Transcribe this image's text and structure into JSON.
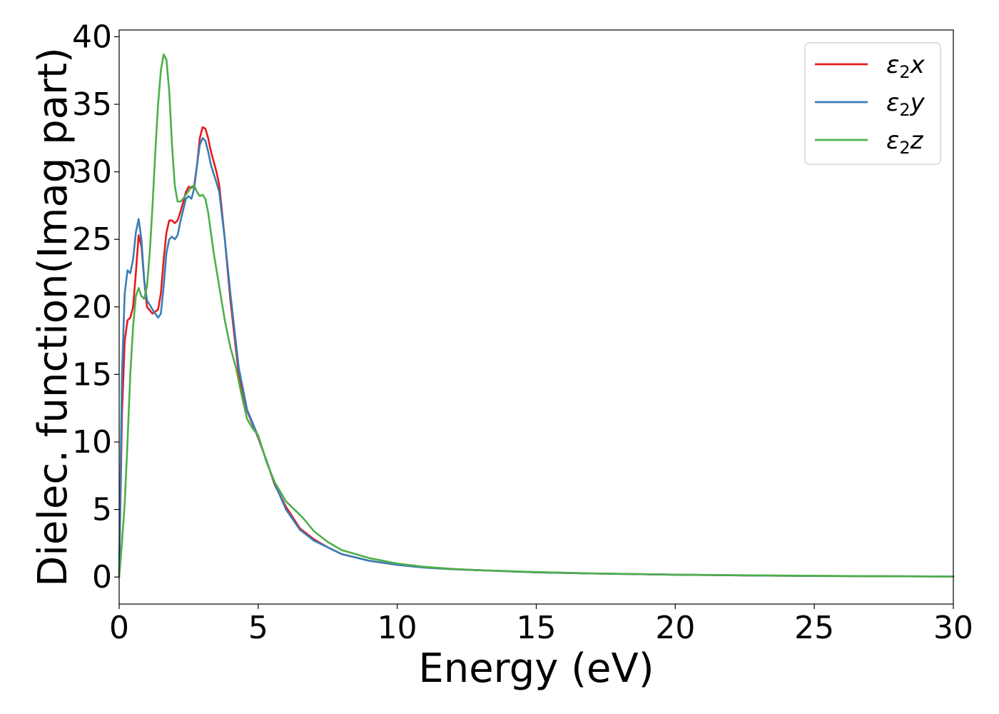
{
  "chart_data": {
    "type": "line",
    "title": "",
    "xlabel": "Energy (eV)",
    "ylabel": "Dielec. function(Imag part)",
    "xlim": [
      0,
      30
    ],
    "ylim": [
      -2,
      40.5
    ],
    "xticks": [
      0,
      5,
      10,
      15,
      20,
      25,
      30
    ],
    "yticks": [
      0,
      5,
      10,
      15,
      20,
      25,
      30,
      35,
      40
    ],
    "grid": false,
    "legend_position": "top-right",
    "series": [
      {
        "name": "ε2x",
        "legend": {
          "base": "ε",
          "sub": "2",
          "var": "x"
        },
        "color": "#e41a1c",
        "x": [
          0,
          0.1,
          0.2,
          0.3,
          0.4,
          0.5,
          0.6,
          0.7,
          0.8,
          0.9,
          1.0,
          1.2,
          1.4,
          1.5,
          1.6,
          1.7,
          1.8,
          1.9,
          2.0,
          2.1,
          2.2,
          2.4,
          2.5,
          2.6,
          2.7,
          2.8,
          2.9,
          3.0,
          3.1,
          3.2,
          3.3,
          3.5,
          3.6,
          3.8,
          4.0,
          4.3,
          4.6,
          5.0,
          5.3,
          5.6,
          6.0,
          6.5,
          7.0,
          7.5,
          8.0,
          9.0,
          10.0,
          11.0,
          12.0,
          13.0,
          15.0,
          17.0,
          20.0,
          22.5,
          25.0,
          27.5,
          30.0
        ],
        "y": [
          0,
          12,
          17.5,
          19,
          19.2,
          20,
          22.5,
          25.3,
          24.5,
          22,
          20,
          19.5,
          19.8,
          21,
          23.5,
          25.5,
          26.4,
          26.4,
          26.2,
          26.4,
          27,
          28.5,
          28.9,
          28.8,
          29,
          30.5,
          32.5,
          33.3,
          33.2,
          32.5,
          31.5,
          30,
          29,
          25,
          20.5,
          15,
          12.3,
          10.3,
          8.6,
          6.8,
          5.2,
          3.6,
          2.8,
          2.2,
          1.7,
          1.2,
          0.9,
          0.7,
          0.58,
          0.5,
          0.35,
          0.26,
          0.17,
          0.12,
          0.08,
          0.06,
          0.04
        ]
      },
      {
        "name": "ε2y",
        "legend": {
          "base": "ε",
          "sub": "2",
          "var": "y"
        },
        "color": "#377eb8",
        "x": [
          0,
          0.1,
          0.2,
          0.3,
          0.4,
          0.5,
          0.6,
          0.7,
          0.8,
          0.9,
          1.0,
          1.2,
          1.4,
          1.5,
          1.6,
          1.7,
          1.8,
          1.9,
          2.0,
          2.1,
          2.2,
          2.4,
          2.5,
          2.6,
          2.7,
          2.8,
          2.9,
          3.0,
          3.1,
          3.2,
          3.3,
          3.5,
          3.6,
          3.8,
          4.0,
          4.3,
          4.6,
          5.0,
          5.3,
          5.6,
          6.0,
          6.5,
          7.0,
          7.5,
          8.0,
          9.0,
          10.0,
          11.0,
          12.0,
          13.0,
          15.0,
          17.0,
          20.0,
          22.5,
          25.0,
          27.5,
          30.0
        ],
        "y": [
          0,
          15,
          21,
          22.7,
          22.5,
          23.5,
          25.5,
          26.5,
          25,
          22,
          20.5,
          19.8,
          19.2,
          19.5,
          21.5,
          24,
          25,
          25.2,
          25,
          25.3,
          26.3,
          28,
          28.2,
          28,
          28.8,
          30.5,
          32,
          32.5,
          32.3,
          31.5,
          30.5,
          29.2,
          28.5,
          25,
          21,
          15.5,
          12.4,
          10.4,
          8.6,
          6.9,
          5.0,
          3.5,
          2.7,
          2.2,
          1.7,
          1.2,
          0.9,
          0.7,
          0.58,
          0.5,
          0.35,
          0.26,
          0.17,
          0.12,
          0.08,
          0.06,
          0.04
        ]
      },
      {
        "name": "ε2z",
        "legend": {
          "base": "ε",
          "sub": "2",
          "var": "z"
        },
        "color": "#4daf4a",
        "x": [
          0,
          0.1,
          0.2,
          0.3,
          0.4,
          0.5,
          0.6,
          0.7,
          0.8,
          0.9,
          1.0,
          1.1,
          1.2,
          1.3,
          1.4,
          1.5,
          1.6,
          1.7,
          1.8,
          1.9,
          2.0,
          2.1,
          2.2,
          2.3,
          2.4,
          2.5,
          2.6,
          2.7,
          2.8,
          2.9,
          3.0,
          3.1,
          3.2,
          3.4,
          3.6,
          3.8,
          4.0,
          4.2,
          4.4,
          4.6,
          4.8,
          5.0,
          5.3,
          5.6,
          6.0,
          6.3,
          6.6,
          7.0,
          7.5,
          8.0,
          9.0,
          10.0,
          11.0,
          12.0,
          13.0,
          15.0,
          17.0,
          20.0,
          22.5,
          25.0,
          27.5,
          30.0
        ],
        "y": [
          0,
          2.5,
          5.5,
          10,
          15,
          18.5,
          20.8,
          21.4,
          20.8,
          20.6,
          21.5,
          24,
          27.5,
          31.5,
          35,
          37.5,
          38.7,
          38.3,
          36,
          32,
          29,
          27.8,
          27.8,
          28,
          28.3,
          28.6,
          28.9,
          29,
          28.5,
          28.2,
          28.3,
          28,
          27,
          24,
          21.5,
          19,
          17,
          15.5,
          13.5,
          11.7,
          11,
          10.5,
          8.5,
          7.0,
          5.6,
          5.0,
          4.4,
          3.4,
          2.6,
          2.0,
          1.4,
          1.0,
          0.75,
          0.6,
          0.5,
          0.37,
          0.27,
          0.18,
          0.13,
          0.09,
          0.06,
          0.04
        ]
      }
    ]
  }
}
